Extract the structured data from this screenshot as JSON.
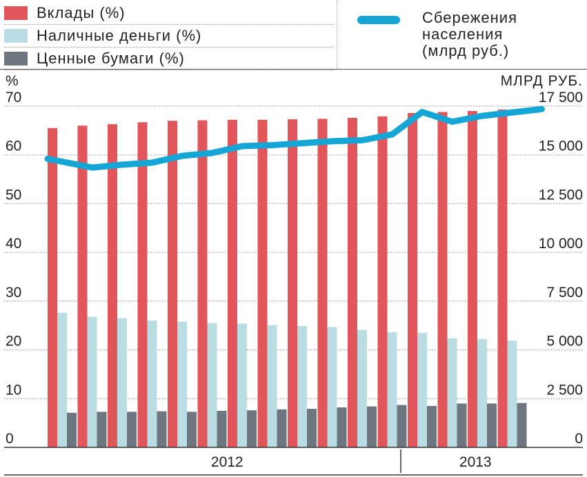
{
  "legend": {
    "deposits": "Вклады (%)",
    "cash": "Наличные деньги (%)",
    "securities": "Ценные бумаги (%)",
    "savings_line1": "Сбережения",
    "savings_line2": "населения",
    "savings_line3": "(млрд руб.)"
  },
  "colors": {
    "deposits": "#e0565a",
    "cash": "#b9dde2",
    "securities": "#6e777f",
    "savings": "#15a6d6"
  },
  "chart_data": {
    "type": "bar",
    "left_axis_label": "%",
    "right_axis_label": "МЛРД РУБ.",
    "left_axis": {
      "range": [
        0,
        70
      ],
      "ticks": [
        "0",
        "10",
        "20",
        "30",
        "40",
        "50",
        "60",
        "70"
      ]
    },
    "right_axis": {
      "range": [
        0,
        17500
      ],
      "ticks": [
        "0",
        "2 500",
        "5 000",
        "7 500",
        "10 000",
        "12 500",
        "15 000",
        "17 500"
      ]
    },
    "years": [
      {
        "label": "2012",
        "from": 0,
        "to": 11
      },
      {
        "label": "2013",
        "from": 12,
        "to": 15
      }
    ],
    "series": [
      {
        "name": "Вклады (%)",
        "axis": "left",
        "values": [
          65.5,
          66,
          66.3,
          66.7,
          67,
          67.1,
          67.2,
          67.2,
          67.3,
          67.4,
          67.6,
          67.9,
          68.6,
          68.8,
          69,
          69.3
        ]
      },
      {
        "name": "Наличные деньги (%)",
        "axis": "left",
        "values": [
          27.6,
          26.8,
          26.5,
          26,
          25.8,
          25.5,
          25.4,
          25.1,
          24.9,
          24.7,
          24.1,
          23.6,
          23.5,
          22.4,
          22.2,
          21.9
        ]
      },
      {
        "name": "Ценные бумаги (%)",
        "axis": "left",
        "values": [
          7.1,
          7.3,
          7.3,
          7.4,
          7.3,
          7.5,
          7.6,
          7.8,
          7.9,
          8.2,
          8.4,
          8.7,
          8.5,
          9,
          9,
          9.1
        ]
      },
      {
        "name": "Сбережения населения (млрд руб.)",
        "axis": "right",
        "type": "line",
        "values": [
          14800,
          14350,
          14500,
          14600,
          14950,
          15100,
          15450,
          15500,
          15600,
          15700,
          15750,
          16050,
          17200,
          16700,
          17000,
          17350
        ]
      }
    ]
  }
}
